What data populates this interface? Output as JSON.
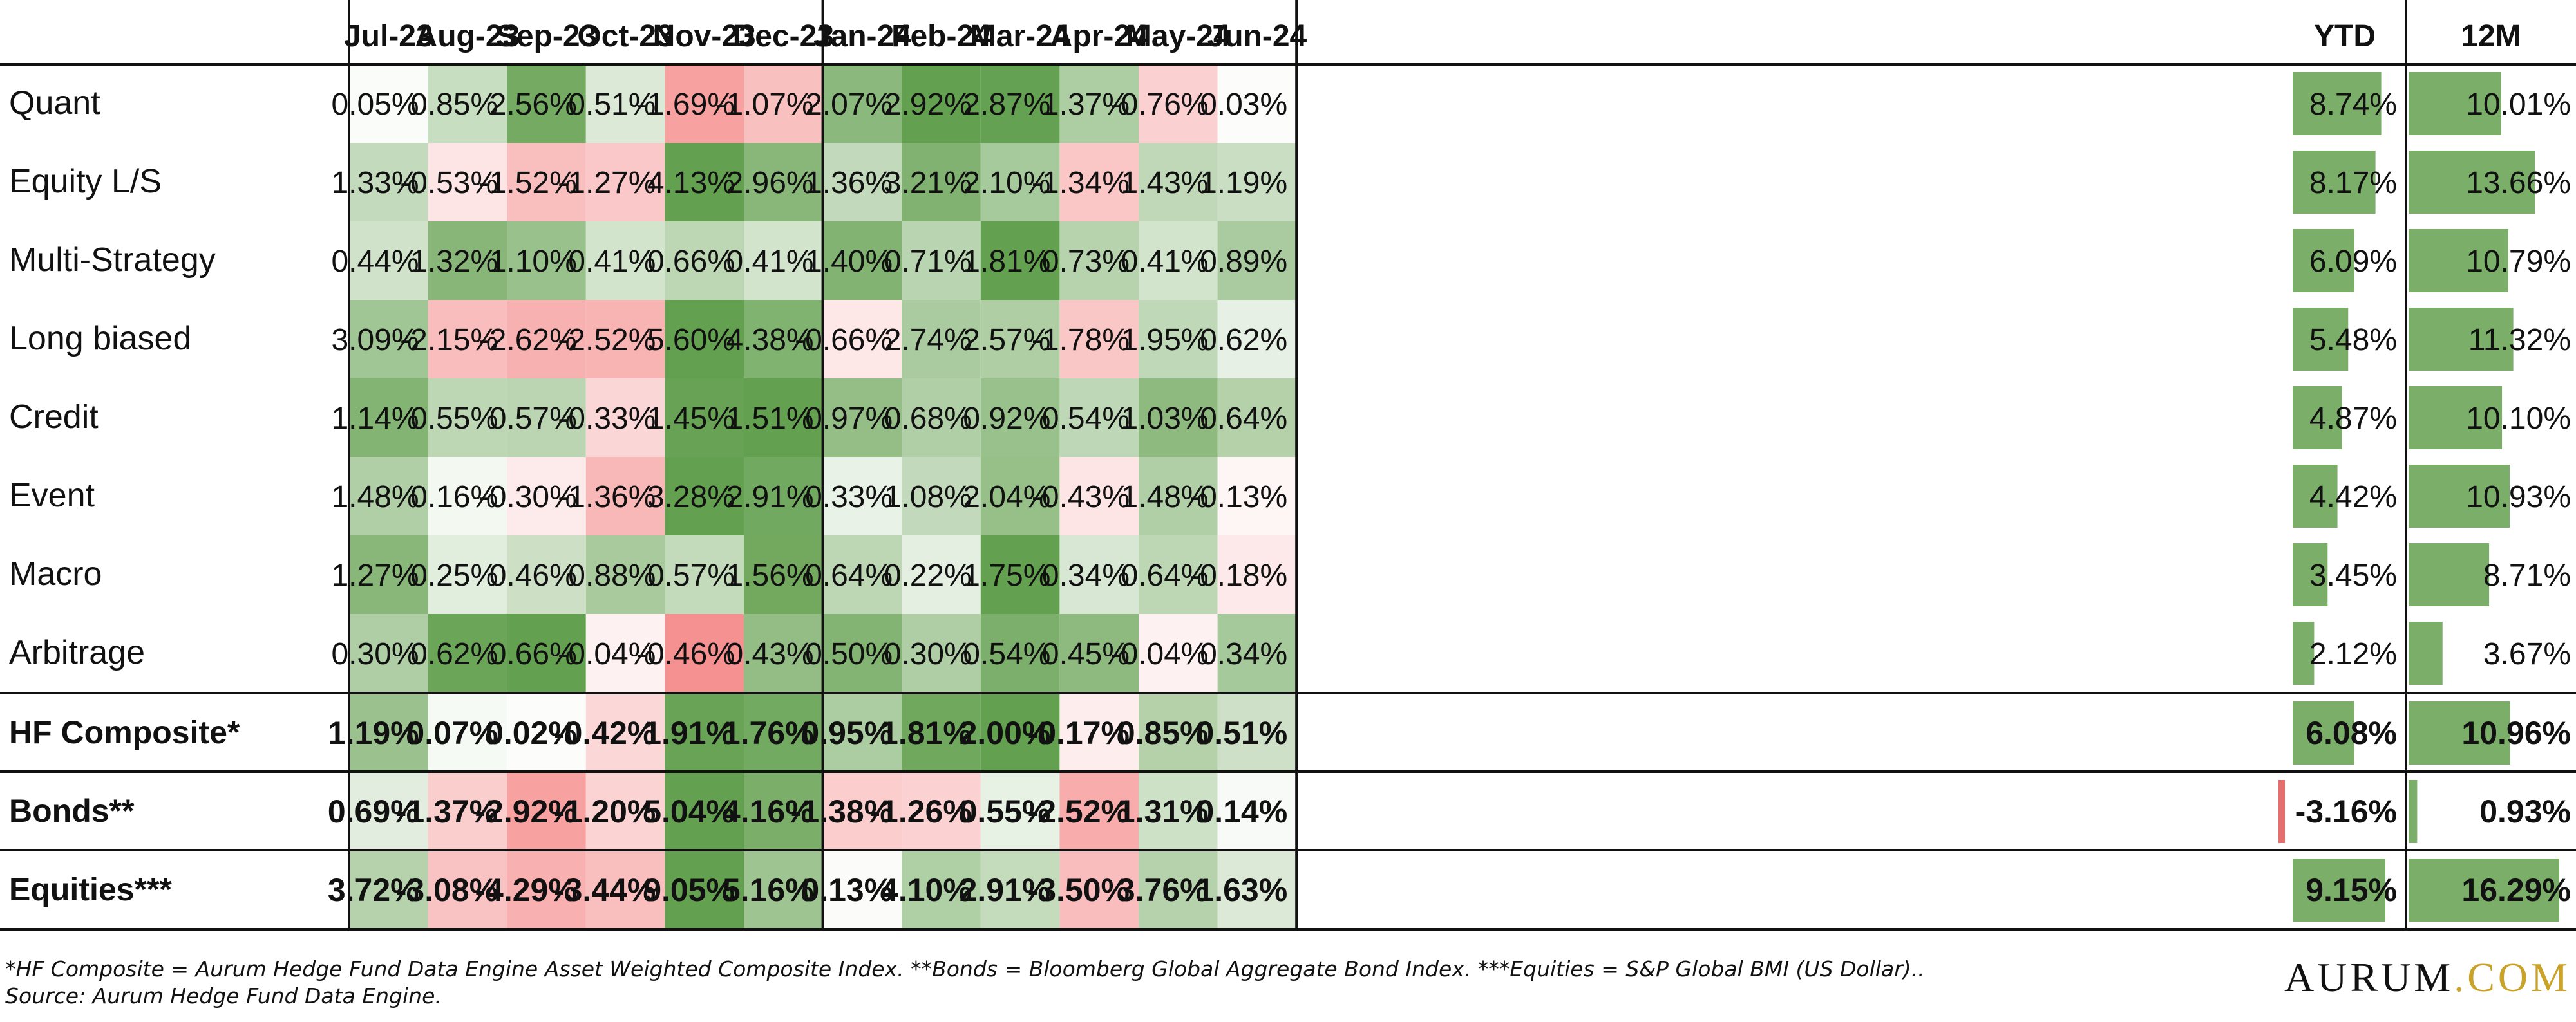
{
  "chart_data": {
    "type": "heatmap",
    "columns": [
      "Jul-23",
      "Aug-23",
      "Sep-23",
      "Oct-23",
      "Nov-23",
      "Dec-23",
      "Jan-24",
      "Feb-24",
      "Mar-24",
      "Apr-24",
      "May-24",
      "Jun-24"
    ],
    "summary_columns": [
      "YTD",
      "12M"
    ],
    "rows": [
      {
        "label": "Quant",
        "bold": false,
        "values": [
          0.05,
          0.85,
          2.56,
          0.51,
          -1.69,
          -1.07,
          2.07,
          2.92,
          2.87,
          1.37,
          -0.76,
          0.03
        ],
        "ytd": 8.74,
        "m12": 10.01
      },
      {
        "label": "Equity L/S",
        "bold": false,
        "values": [
          1.33,
          -0.53,
          -1.52,
          -1.27,
          4.13,
          2.96,
          1.36,
          3.21,
          2.1,
          -1.34,
          1.43,
          1.19
        ],
        "ytd": 8.17,
        "m12": 13.66
      },
      {
        "label": "Multi-Strategy",
        "bold": false,
        "values": [
          0.44,
          1.32,
          1.1,
          0.41,
          0.66,
          0.41,
          1.4,
          0.71,
          1.81,
          0.73,
          0.41,
          0.89
        ],
        "ytd": 6.09,
        "m12": 10.79
      },
      {
        "label": "Long biased",
        "bold": false,
        "values": [
          3.09,
          -2.15,
          -2.62,
          -2.52,
          5.6,
          4.38,
          -0.66,
          2.74,
          2.57,
          -1.78,
          1.95,
          0.62
        ],
        "ytd": 5.48,
        "m12": 11.32
      },
      {
        "label": "Credit",
        "bold": false,
        "values": [
          1.14,
          0.55,
          0.57,
          -0.33,
          1.45,
          1.51,
          0.97,
          0.68,
          0.92,
          0.54,
          1.03,
          0.64
        ],
        "ytd": 4.87,
        "m12": 10.1
      },
      {
        "label": "Event",
        "bold": false,
        "values": [
          1.48,
          0.16,
          -0.3,
          -1.36,
          3.28,
          2.91,
          0.33,
          1.08,
          2.04,
          -0.43,
          1.48,
          -0.13
        ],
        "ytd": 4.42,
        "m12": 10.93
      },
      {
        "label": "Macro",
        "bold": false,
        "values": [
          1.27,
          0.25,
          0.46,
          0.88,
          0.57,
          1.56,
          0.64,
          0.22,
          1.75,
          0.34,
          0.64,
          -0.18
        ],
        "ytd": 3.45,
        "m12": 8.71
      },
      {
        "label": "Arbitrage",
        "bold": false,
        "values": [
          0.3,
          0.62,
          0.66,
          -0.04,
          -0.46,
          0.43,
          0.5,
          0.3,
          0.54,
          0.45,
          -0.04,
          0.34
        ],
        "ytd": 2.12,
        "m12": 3.67
      },
      {
        "label": "HF Composite*",
        "bold": true,
        "values": [
          1.19,
          0.07,
          0.02,
          -0.42,
          1.91,
          1.76,
          0.95,
          1.81,
          2.0,
          -0.17,
          0.85,
          0.51
        ],
        "ytd": 6.08,
        "m12": 10.96
      },
      {
        "label": "Bonds**",
        "bold": true,
        "values": [
          0.69,
          -1.37,
          -2.92,
          -1.2,
          5.04,
          4.16,
          -1.38,
          -1.26,
          0.55,
          -2.52,
          1.31,
          0.14
        ],
        "ytd": -3.16,
        "m12": 0.93
      },
      {
        "label": "Equities***",
        "bold": true,
        "values": [
          3.72,
          -3.08,
          -4.29,
          -3.44,
          9.05,
          5.16,
          0.13,
          4.1,
          2.91,
          -3.5,
          3.76,
          1.63
        ],
        "ytd": 9.15,
        "m12": 16.29
      }
    ],
    "value_format": "percent_2dp",
    "colors": {
      "positive": "#63a04f",
      "negative": "#f26a6a",
      "neutral": "#ffffff",
      "bar": "#63a04f",
      "bar_negative": "#e05555"
    }
  },
  "footnote_line1": "*HF Composite = Aurum Hedge Fund Data Engine Asset Weighted Composite Index. **Bonds = Bloomberg Global Aggregate Bond Index. ***Equities = S&P Global BMI (US Dollar)..",
  "footnote_line2": "Source: Aurum Hedge Fund Data Engine.",
  "logo": {
    "brand": "AURUM",
    "suffix": ".COM"
  }
}
